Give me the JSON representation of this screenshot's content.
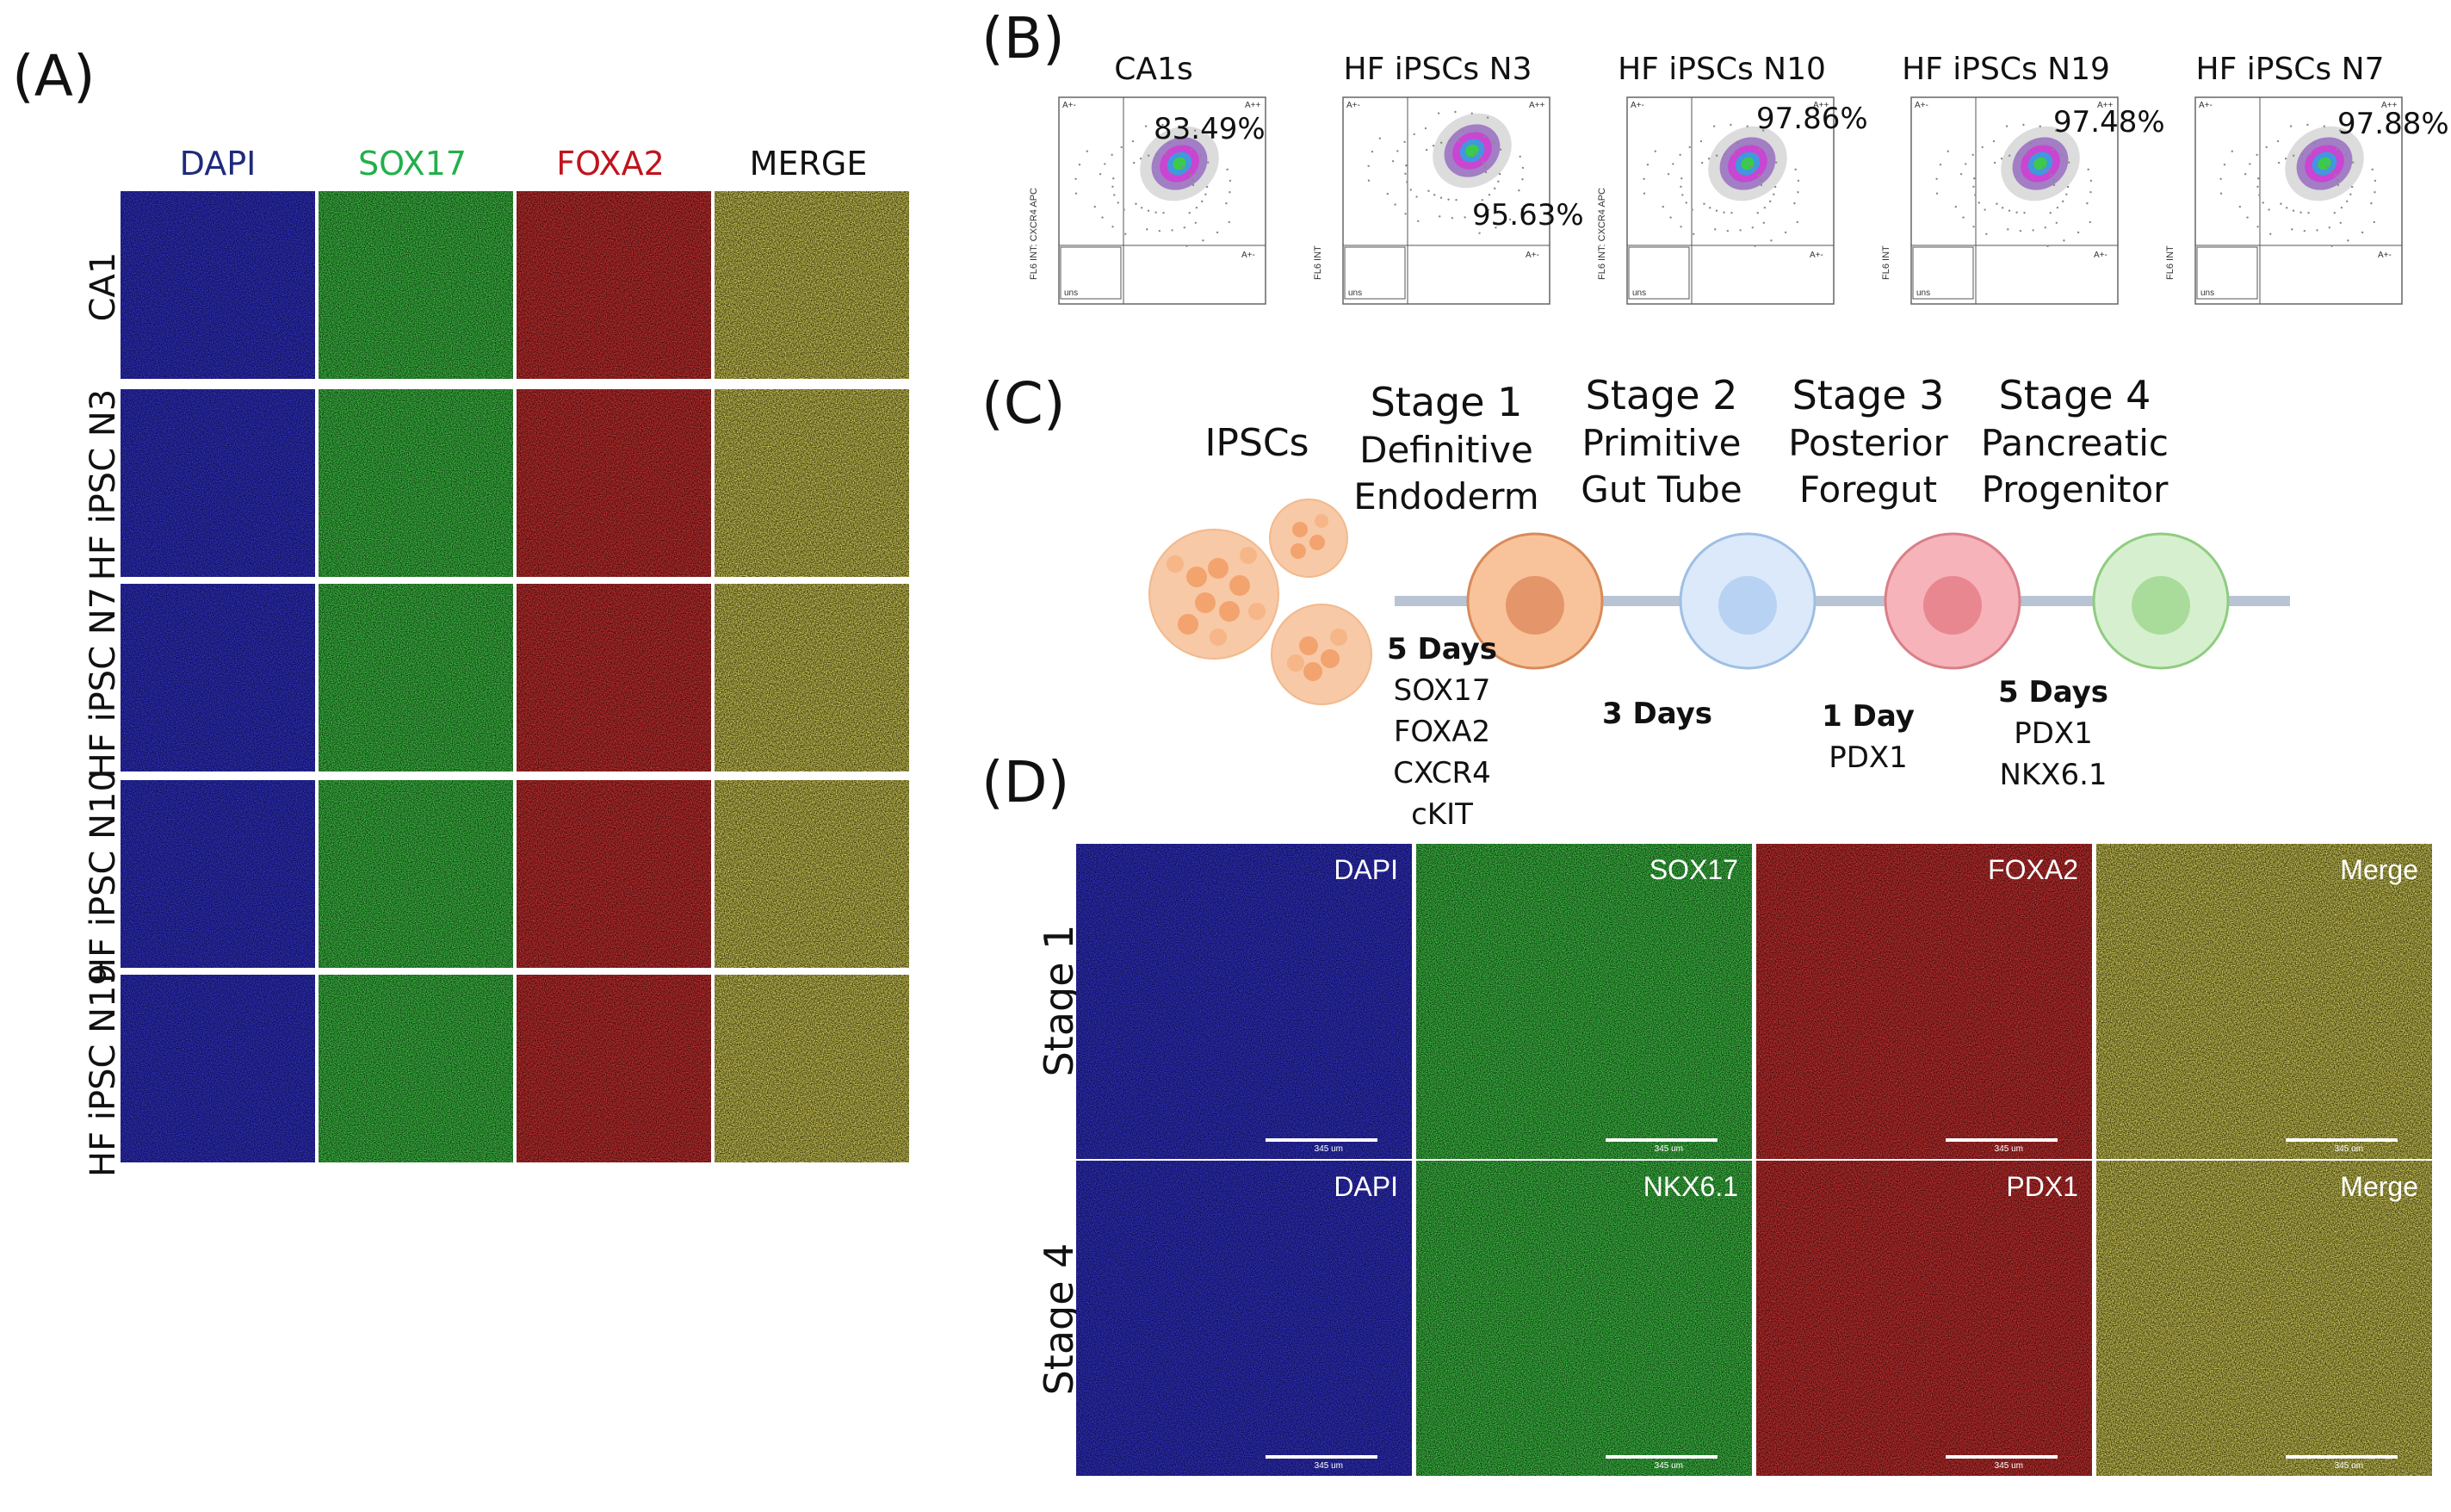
{
  "panels": {
    "a": "(A)",
    "b": "(B)",
    "c": "(C)",
    "d": "(D)"
  },
  "colors": {
    "dapi": "#1a1aa8",
    "sox17": "#1fa61f",
    "foxa2": "#c21515",
    "merge": "#b7a62a",
    "dapi_text": "#1f2a7a",
    "sox17_text": "#22b04a",
    "foxa2_text": "#c0141c"
  },
  "panelA": {
    "columns": [
      "DAPI",
      "SOX17",
      "FOXA2",
      "MERGE"
    ],
    "rows": [
      "CA1",
      "HF iPSC N3",
      "HF iPSC N7",
      "HF iPSC N10",
      "HF iPSC N19"
    ]
  },
  "panelB": {
    "plots": [
      {
        "title": "CA1s",
        "pct": "83.49%",
        "ylabel": "FL6 INT: CXCR4 APC"
      },
      {
        "title": "HF iPSCs N3",
        "pct": "95.63%",
        "ylabel": "FL6 INT"
      },
      {
        "title": "HF iPSCs N10",
        "pct": "97.86%",
        "ylabel": "FL6 INT: CXCR4 APC"
      },
      {
        "title": "HF iPSCs N19",
        "pct": "97.48%",
        "ylabel": "FL6 INT"
      },
      {
        "title": "HF iPSCs N7",
        "pct": "97.88%",
        "ylabel": "FL6 INT"
      }
    ],
    "quadrants": {
      "ul": "A+-",
      "ur": "A++",
      "lr": "A+-",
      "ll": "uns"
    }
  },
  "panelC": {
    "ipscs": "IPSCs",
    "stages": [
      {
        "name": "Stage 1",
        "line1": "Definitive",
        "line2": "Endoderm"
      },
      {
        "name": "Stage 2",
        "line1": "Primitive",
        "line2": "Gut Tube"
      },
      {
        "name": "Stage 3",
        "line1": "Posterior",
        "line2": "Foregut"
      },
      {
        "name": "Stage 4",
        "line1": "Pancreatic",
        "line2": "Progenitor"
      }
    ],
    "durations": [
      {
        "days": "5 Days",
        "markers": [
          "SOX17",
          "FOXA2",
          "CXCR4",
          "cKIT"
        ]
      },
      {
        "days": "3 Days",
        "markers": []
      },
      {
        "days": "1 Day",
        "markers": [
          "PDX1"
        ]
      },
      {
        "days": "5 Days",
        "markers": [
          "PDX1",
          "NKX6.1"
        ]
      }
    ]
  },
  "panelD": {
    "rows": [
      {
        "label": "Stage 1",
        "channels": [
          "DAPI",
          "SOX17",
          "FOXA2",
          "Merge"
        ]
      },
      {
        "label": "Stage 4",
        "channels": [
          "DAPI",
          "NKX6.1",
          "PDX1",
          "Merge"
        ]
      }
    ],
    "scale": "345 um"
  }
}
